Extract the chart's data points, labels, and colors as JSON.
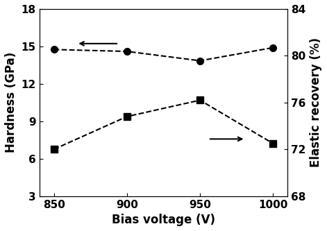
{
  "x": [
    850,
    900,
    950,
    1000
  ],
  "hardness": [
    14.75,
    14.6,
    13.85,
    14.9
  ],
  "elastic_recovery": [
    72.0,
    74.8,
    76.2,
    72.5
  ],
  "left_ylim": [
    3,
    18
  ],
  "right_ylim": [
    68,
    84
  ],
  "left_yticks": [
    3,
    6,
    9,
    12,
    15,
    18
  ],
  "right_yticks": [
    68,
    72,
    76,
    80,
    84
  ],
  "xticks": [
    850,
    900,
    950,
    1000
  ],
  "xlabel": "Bias voltage (V)",
  "ylabel_left": "Hardness (GPa)",
  "ylabel_right": "Elastic recovery (%)",
  "line_color": "black",
  "marker_circle": "o",
  "marker_square": "s",
  "markersize": 7,
  "linewidth": 1.5,
  "linestyle": "--"
}
